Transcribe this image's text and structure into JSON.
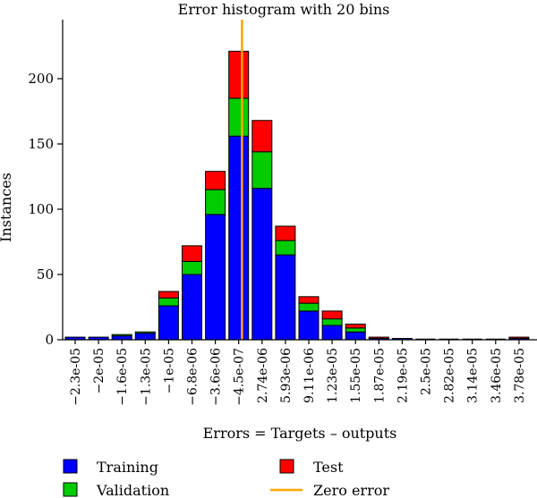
{
  "chart_data": {
    "type": "bar",
    "stacked": true,
    "title": "Error histogram with 20 bins",
    "xlabel": "Errors = Targets – outputs",
    "ylabel": "Instances",
    "ylim": [
      0,
      240
    ],
    "yticks": [
      0,
      50,
      100,
      150,
      200
    ],
    "grid": false,
    "legend_placement": "bottom",
    "categories": [
      "−2.3e-05",
      "−2e-05",
      "−1.6e-05",
      "−1.3e-05",
      "−1e-05",
      "−6.8e-06",
      "−3.6e-06",
      "−4.5e-07",
      "2.74e-06",
      "5.93e-06",
      "9.11e-06",
      "1.23e-05",
      "1.55e-05",
      "1.87e-05",
      "2.19e-05",
      "2.5e-05",
      "2.82e-05",
      "3.14e-05",
      "3.46e-05",
      "3.78e-05"
    ],
    "series": [
      {
        "name": "Training",
        "color": "#0000ff",
        "values": [
          2,
          2,
          3,
          5,
          26,
          50,
          96,
          156,
          116,
          65,
          22,
          11,
          6,
          1,
          1,
          0,
          0,
          0,
          0,
          1
        ]
      },
      {
        "name": "Validation",
        "color": "#00cc00",
        "values": [
          0,
          0,
          1,
          1,
          6,
          10,
          19,
          29,
          28,
          11,
          6,
          5,
          3,
          0,
          0,
          0,
          0,
          0,
          0,
          0
        ]
      },
      {
        "name": "Test",
        "color": "#ff0000",
        "values": [
          0,
          0,
          0,
          0,
          5,
          12,
          14,
          36,
          24,
          11,
          5,
          6,
          3,
          1,
          0,
          0,
          0,
          0,
          0,
          1
        ]
      }
    ],
    "reference_line": {
      "name": "Zero error",
      "color": "#ffa500",
      "x": 0
    }
  }
}
